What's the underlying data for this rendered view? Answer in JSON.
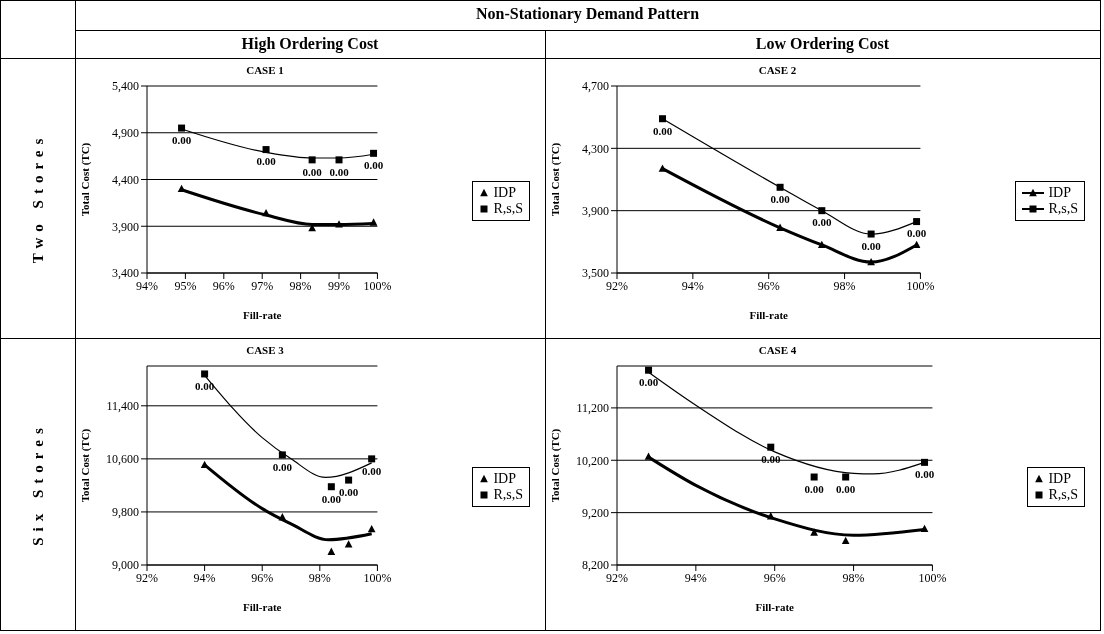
{
  "chart_data": [
    {
      "type": "scatter",
      "title": "CASE 1",
      "xlabel": "Fill-rate",
      "ylabel": "Total Cost (TC)",
      "xlim": [
        94,
        100
      ],
      "xticks": [
        {
          "value": 94,
          "label": "94%"
        },
        {
          "value": 95,
          "label": "95%"
        },
        {
          "value": 96,
          "label": "96%"
        },
        {
          "value": 97,
          "label": "97%"
        },
        {
          "value": 98,
          "label": "98%"
        },
        {
          "value": 99,
          "label": "99%"
        },
        {
          "value": 100,
          "label": "100%"
        }
      ],
      "ylim": [
        3400,
        5400
      ],
      "yticks": [
        {
          "value": 3400,
          "label": "3,400"
        },
        {
          "value": 3900,
          "label": "3,900"
        },
        {
          "value": 4400,
          "label": "4,400"
        },
        {
          "value": 4900,
          "label": "4,900"
        },
        {
          "value": 5400,
          "label": "5,400"
        }
      ],
      "grid": "y",
      "legend": "right",
      "x": [
        94.9,
        97.1,
        98.3,
        99.0,
        99.9
      ],
      "series": [
        {
          "name": "IDP",
          "color": "#000000",
          "marker": "triangle",
          "values": [
            4300,
            4040,
            3880,
            3920,
            3940
          ]
        },
        {
          "name": "R,s,S",
          "color": "#000000",
          "marker": "square",
          "values": [
            4950,
            4720,
            4610,
            4610,
            4680
          ]
        },
        {
          "type": "line",
          "color": "#000000",
          "marker": "none",
          "x": [
            94.9,
            97.1,
            98.3,
            99.0,
            99.9
          ],
          "values": [
            4290,
            4020,
            3920,
            3920,
            3930
          ]
        },
        {
          "type": "line",
          "color": "#000000",
          "marker": "none",
          "x": [
            94.9,
            97.1,
            98.3,
            99.0,
            99.9
          ],
          "values": [
            4940,
            4690,
            4630,
            4630,
            4670
          ]
        }
      ],
      "annotations": [
        {
          "text": "0.00",
          "x": 94.9,
          "y": 4950
        },
        {
          "text": "0.00",
          "x": 97.1,
          "y": 4720
        },
        {
          "text": "0.00",
          "x": 98.3,
          "y": 4610
        },
        {
          "text": "0.00",
          "x": 99.0,
          "y": 4610
        },
        {
          "text": "0.00",
          "x": 99.9,
          "y": 4680
        }
      ]
    },
    {
      "type": "line",
      "title": "CASE 2",
      "xlabel": "Fill-rate",
      "ylabel": "Total Cost (TC)",
      "xlim": [
        92,
        100
      ],
      "xticks": [
        {
          "value": 92,
          "label": "92%"
        },
        {
          "value": 94,
          "label": "94%"
        },
        {
          "value": 96,
          "label": "96%"
        },
        {
          "value": 98,
          "label": "98%"
        },
        {
          "value": 100,
          "label": "100%"
        }
      ],
      "ylim": [
        3500,
        4700
      ],
      "yticks": [
        {
          "value": 3500,
          "label": "3,500"
        },
        {
          "value": 3900,
          "label": "3,900"
        },
        {
          "value": 4300,
          "label": "4,300"
        },
        {
          "value": 4700,
          "label": "4,700"
        }
      ],
      "grid": "y",
      "legend": "right",
      "x": [
        93.2,
        96.3,
        97.4,
        98.7,
        99.9
      ],
      "series": [
        {
          "name": "IDP",
          "color": "#000000",
          "marker": "triangle",
          "values": [
            4170,
            3790,
            3680,
            3570,
            3680
          ]
        },
        {
          "name": "R,s,S",
          "color": "#000000",
          "marker": "square",
          "values": [
            4490,
            4050,
            3900,
            3750,
            3830
          ]
        }
      ],
      "annotations": [
        {
          "text": "0.00",
          "x": 93.2,
          "y": 4490
        },
        {
          "text": "0.00",
          "x": 96.3,
          "y": 4050
        },
        {
          "text": "0.00",
          "x": 97.4,
          "y": 3900
        },
        {
          "text": "0.00",
          "x": 98.7,
          "y": 3750
        },
        {
          "text": "0.00",
          "x": 99.9,
          "y": 3830
        }
      ]
    },
    {
      "type": "scatter",
      "title": "CASE 3",
      "xlabel": "Fill-rate",
      "ylabel": "Total Cost (TC)",
      "xlim": [
        92,
        100
      ],
      "xticks": [
        {
          "value": 92,
          "label": "92%"
        },
        {
          "value": 94,
          "label": "94%"
        },
        {
          "value": 96,
          "label": "96%"
        },
        {
          "value": 98,
          "label": "98%"
        },
        {
          "value": 100,
          "label": "100%"
        }
      ],
      "ylim": [
        9000,
        12000
      ],
      "yticks": [
        {
          "value": 9000,
          "label": "9,000"
        },
        {
          "value": 9800,
          "label": "9,800"
        },
        {
          "value": 10600,
          "label": "10,600"
        },
        {
          "value": 11400,
          "label": "11,400"
        }
      ],
      "grid": "y",
      "legend": "right",
      "x": [
        94.0,
        96.7,
        98.4,
        99.0,
        99.8
      ],
      "series": [
        {
          "name": "IDP",
          "color": "#000000",
          "marker": "triangle",
          "values": [
            10510,
            9720,
            9200,
            9310,
            9540
          ]
        },
        {
          "name": "R,s,S",
          "color": "#000000",
          "marker": "square",
          "values": [
            11880,
            10660,
            10180,
            10280,
            10600
          ]
        },
        {
          "type": "line",
          "color": "#000000",
          "marker": "none",
          "x": [
            94.0,
            96.0,
            97.0,
            98.3,
            99.8
          ],
          "values": [
            10510,
            9850,
            9620,
            9380,
            9470
          ]
        },
        {
          "type": "line",
          "color": "#000000",
          "marker": "none",
          "x": [
            94.0,
            96.0,
            97.0,
            98.2,
            99.8
          ],
          "values": [
            11860,
            10920,
            10600,
            10320,
            10540
          ]
        }
      ],
      "annotations": [
        {
          "text": "0.00",
          "x": 94.0,
          "y": 11880
        },
        {
          "text": "0.00",
          "x": 96.7,
          "y": 10660
        },
        {
          "text": "0.00",
          "x": 98.4,
          "y": 10180
        },
        {
          "text": "0.00",
          "x": 99.0,
          "y": 10280
        },
        {
          "text": "0.00",
          "x": 99.8,
          "y": 10600
        }
      ]
    },
    {
      "type": "scatter",
      "title": "CASE 4",
      "xlabel": "Fill-rate",
      "ylabel": "Total Cost (TC)",
      "xlim": [
        92,
        100
      ],
      "xticks": [
        {
          "value": 92,
          "label": "92%"
        },
        {
          "value": 94,
          "label": "94%"
        },
        {
          "value": 96,
          "label": "96%"
        },
        {
          "value": 98,
          "label": "98%"
        },
        {
          "value": 100,
          "label": "100%"
        }
      ],
      "ylim": [
        8200,
        12000
      ],
      "yticks": [
        {
          "value": 8200,
          "label": "8,200"
        },
        {
          "value": 9200,
          "label": "9,200"
        },
        {
          "value": 10200,
          "label": "10,200"
        },
        {
          "value": 11200,
          "label": "11,200"
        }
      ],
      "grid": "y",
      "legend": "right",
      "x": [
        92.8,
        95.9,
        97.0,
        97.8,
        99.8
      ],
      "series": [
        {
          "name": "IDP",
          "color": "#000000",
          "marker": "triangle",
          "values": [
            10270,
            9130,
            8820,
            8660,
            8890
          ]
        },
        {
          "name": "R,s,S",
          "color": "#000000",
          "marker": "square",
          "values": [
            11920,
            10450,
            9880,
            9880,
            10160
          ]
        },
        {
          "type": "line",
          "color": "#000000",
          "marker": "none",
          "x": [
            92.8,
            94.0,
            96.0,
            98.0,
            99.8
          ],
          "values": [
            10260,
            9720,
            9080,
            8770,
            8880
          ]
        },
        {
          "type": "line",
          "color": "#000000",
          "marker": "none",
          "x": [
            92.8,
            94.0,
            96.0,
            98.0,
            98.5,
            99.8
          ],
          "values": [
            11880,
            11250,
            10360,
            9950,
            9940,
            10160
          ]
        }
      ],
      "annotations": [
        {
          "text": "0.00",
          "x": 92.8,
          "y": 11920
        },
        {
          "text": "0.00",
          "x": 95.9,
          "y": 10450
        },
        {
          "text": "0.00",
          "x": 97.0,
          "y": 9880
        },
        {
          "text": "0.00",
          "x": 97.8,
          "y": 9880
        },
        {
          "text": "0.00",
          "x": 99.8,
          "y": 10160
        }
      ]
    },
    {
      "type": "other",
      "title": "Non-Stationary Demand Pattern",
      "annotations": [
        "High Ordering Cost",
        "Low Ordering Cost",
        "Two Stores",
        "Six Stores"
      ]
    }
  ]
}
